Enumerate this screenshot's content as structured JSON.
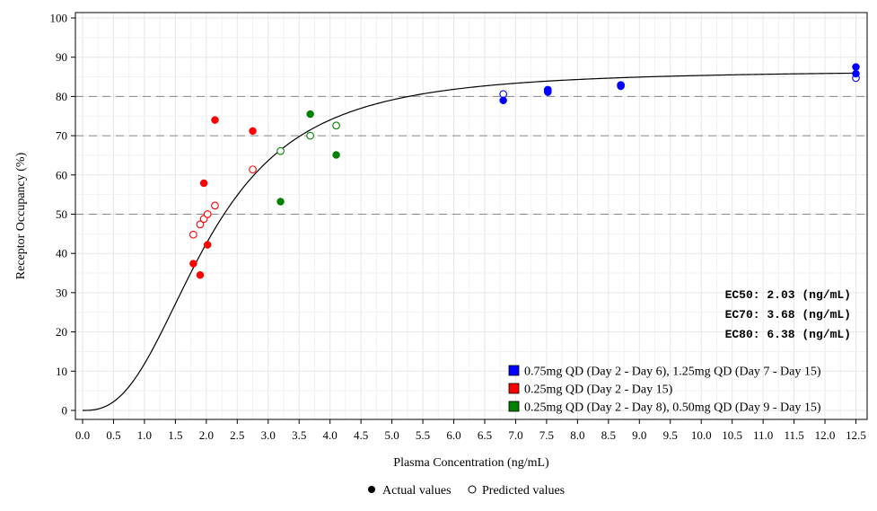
{
  "chart_data": {
    "type": "scatter",
    "xlabel": "Plasma Concentration (ng/mL)",
    "ylabel": "Receptor Occupancy (%)",
    "xlim": [
      0,
      12.6
    ],
    "ylim": [
      0,
      100
    ],
    "x_ticks": [
      "0.0",
      "0.5",
      "1.0",
      "1.5",
      "2.0",
      "2.5",
      "3.0",
      "3.5",
      "4.0",
      "4.5",
      "5.0",
      "5.5",
      "6.0",
      "6.5",
      "7.0",
      "7.5",
      "8.0",
      "8.5",
      "9.0",
      "9.5",
      "10.0",
      "10.5",
      "11.0",
      "11.5",
      "12.0",
      "12.5"
    ],
    "y_ticks": [
      "0",
      "10",
      "20",
      "30",
      "40",
      "50",
      "60",
      "70",
      "80",
      "90",
      "100"
    ],
    "grid": true,
    "reference_lines_y": [
      50,
      70,
      80
    ],
    "model_curve": {
      "emax": 86.7,
      "ec50": 2.03,
      "hill": 2.6
    },
    "annotations": [
      "EC50: 2.03 (ng/mL)",
      "EC70: 3.68 (ng/mL)",
      "EC80: 6.38 (ng/mL)"
    ],
    "legend_position": "bottom-right",
    "series": [
      {
        "name": "0.75mg QD (Day 2 - Day 6), 1.25mg QD (Day 7 - Day 15)",
        "color": "#0000ff",
        "actual": [
          [
            6.8,
            79.0
          ],
          [
            7.52,
            81.1
          ],
          [
            7.52,
            81.6
          ],
          [
            8.7,
            82.6
          ],
          [
            8.7,
            82.9
          ],
          [
            12.5,
            85.8
          ],
          [
            12.5,
            87.5
          ]
        ],
        "predicted": [
          [
            6.8,
            80.6
          ],
          [
            7.52,
            81.7
          ],
          [
            8.7,
            82.9
          ],
          [
            12.5,
            84.7
          ]
        ]
      },
      {
        "name": "0.25mg QD (Day 2 - Day 15)",
        "color": "#ff0000",
        "actual": [
          [
            1.79,
            37.4
          ],
          [
            1.9,
            34.5
          ],
          [
            1.96,
            57.9
          ],
          [
            2.02,
            42.2
          ],
          [
            2.14,
            74.0
          ],
          [
            2.75,
            71.2
          ]
        ],
        "predicted": [
          [
            1.79,
            44.8
          ],
          [
            1.9,
            47.4
          ],
          [
            1.96,
            48.8
          ],
          [
            2.02,
            50.0
          ],
          [
            2.14,
            52.2
          ],
          [
            2.75,
            61.4
          ]
        ]
      },
      {
        "name": "0.25mg QD (Day 2 - Day 8), 0.50mg QD (Day 9 - Day 15)",
        "color": "#008000",
        "actual": [
          [
            3.2,
            53.2
          ],
          [
            3.68,
            75.5
          ],
          [
            4.1,
            65.1
          ]
        ],
        "predicted": [
          [
            3.2,
            66.1
          ],
          [
            3.68,
            70.0
          ],
          [
            4.1,
            72.6
          ]
        ]
      }
    ],
    "marker_legend": {
      "actual_label": "Actual values",
      "predicted_label": "Predicted values"
    }
  }
}
